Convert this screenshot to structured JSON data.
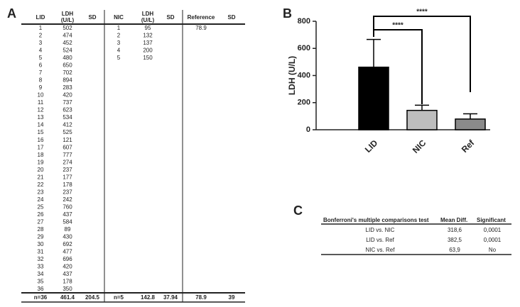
{
  "panel_labels": [
    "A",
    "B",
    "C"
  ],
  "table_a": {
    "headers": [
      "LID",
      "LDH (U/L)",
      "SD",
      "NIC",
      "LDH (U/L)",
      "SD",
      "Reference",
      "SD"
    ],
    "lid_ids": [
      1,
      2,
      3,
      4,
      5,
      6,
      7,
      8,
      9,
      10,
      11,
      12,
      13,
      14,
      15,
      16,
      17,
      18,
      19,
      20,
      21,
      22,
      23,
      24,
      25,
      26,
      27,
      28,
      29,
      30,
      31,
      32,
      33,
      34,
      35,
      36
    ],
    "lid_ldh": [
      502,
      474,
      452,
      524,
      480,
      650,
      702,
      894,
      283,
      420,
      737,
      623,
      534,
      412,
      525,
      121,
      607,
      777,
      274,
      237,
      177,
      178,
      237,
      242,
      760,
      437,
      584,
      89,
      430,
      692,
      477,
      696,
      420,
      437,
      178,
      350
    ],
    "nic_ids": [
      1,
      2,
      3,
      4,
      5
    ],
    "nic_ldh": [
      95,
      132,
      137,
      200,
      150
    ],
    "reference": [
      78.9
    ],
    "footer": [
      "n=36",
      461.4,
      204.5,
      "n=5",
      142.8,
      37.94,
      78.9,
      39
    ]
  },
  "chart_data": {
    "type": "bar",
    "ylabel": "LDH (U/L)",
    "categories": [
      "LID",
      "NIC",
      "Ref"
    ],
    "values": [
      461.4,
      142.8,
      78.9
    ],
    "errors": [
      204.5,
      37.94,
      39
    ],
    "colors": [
      "#000000",
      "#bdbdbd",
      "#8a8a8a"
    ],
    "ylim": [
      0,
      800
    ],
    "yticks": [
      0,
      200,
      400,
      600,
      800
    ],
    "significance": [
      "****",
      "****"
    ]
  },
  "table_c": {
    "headers": [
      "Bonferroni's multiple comparisons test",
      "Mean Diff.",
      "Significant"
    ],
    "rows": [
      [
        "LID vs. NIC",
        "318,6",
        "0,0001"
      ],
      [
        "LID vs. Ref",
        "382,5",
        "0,0001"
      ],
      [
        "NIC vs. Ref",
        "63,9",
        "No"
      ]
    ]
  }
}
